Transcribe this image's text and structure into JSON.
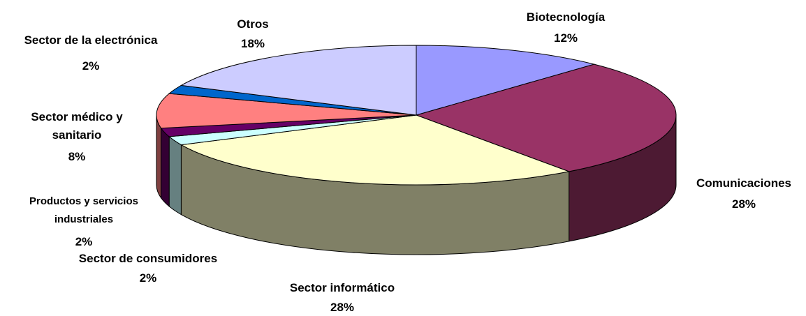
{
  "chart_data": {
    "type": "pie3d",
    "categories": [
      "Biotecnología",
      "Comunicaciones",
      "Sector informático",
      "Sector de consumidores",
      "Productos y servicios industriales",
      "Sector médico y sanitario",
      "Sector de la electrónica",
      "Otros"
    ],
    "values": [
      12,
      28,
      28,
      2,
      2,
      8,
      2,
      18
    ],
    "value_labels": [
      "12%",
      "28%",
      "28%",
      "2%",
      "2%",
      "8%",
      "2%",
      "18%"
    ],
    "colors": [
      "#9999ff",
      "#993366",
      "#ffffcc",
      "#ccffff",
      "#660066",
      "#ff8080",
      "#0066cc",
      "#ccccff"
    ]
  }
}
